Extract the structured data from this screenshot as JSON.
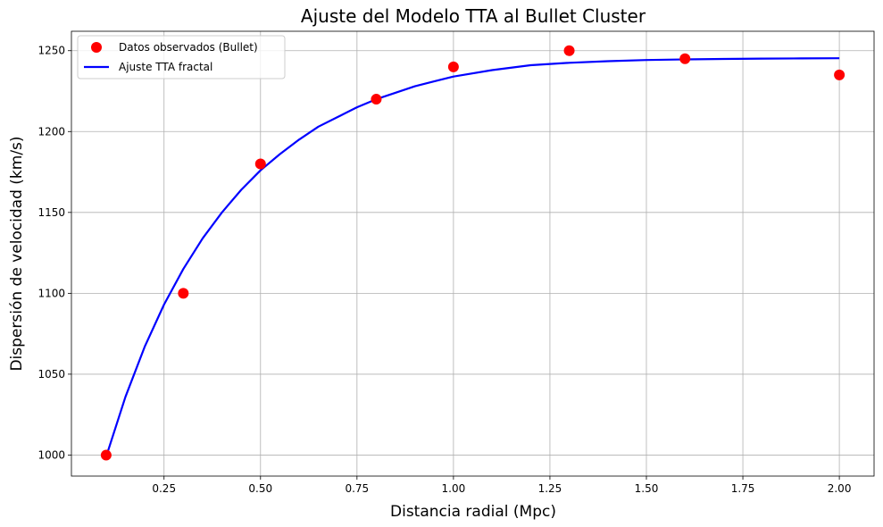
{
  "chart_data": {
    "type": "scatter",
    "title": "Ajuste del Modelo TTA al Bullet Cluster",
    "xlabel": "Distancia radial (Mpc)",
    "ylabel": "Dispersión de velocidad (km/s)",
    "xlim": [
      0.01,
      2.09
    ],
    "ylim": [
      987,
      1262
    ],
    "xticks": [
      0.25,
      0.5,
      0.75,
      1.0,
      1.25,
      1.5,
      1.75,
      2.0
    ],
    "xtick_labels": [
      "0.25",
      "0.50",
      "0.75",
      "1.00",
      "1.25",
      "1.50",
      "1.75",
      "2.00"
    ],
    "yticks": [
      1000,
      1050,
      1100,
      1150,
      1200,
      1250
    ],
    "ytick_labels": [
      "1000",
      "1050",
      "1100",
      "1150",
      "1200",
      "1250"
    ],
    "grid": true,
    "legend_position": "top-left",
    "series": [
      {
        "name": "Datos observados (Bullet)",
        "kind": "scatter",
        "color": "#ff0000",
        "x": [
          0.1,
          0.3,
          0.5,
          0.8,
          1.0,
          1.3,
          1.6,
          2.0
        ],
        "y": [
          1000,
          1100,
          1180,
          1220,
          1240,
          1250,
          1245,
          1235
        ]
      },
      {
        "name": "Ajuste TTA fractal",
        "kind": "line",
        "color": "#0000ff",
        "x": [
          0.1,
          0.15,
          0.2,
          0.25,
          0.3,
          0.35,
          0.4,
          0.45,
          0.5,
          0.55,
          0.6,
          0.65,
          0.7,
          0.75,
          0.8,
          0.85,
          0.9,
          0.95,
          1.0,
          1.1,
          1.2,
          1.3,
          1.4,
          1.5,
          1.6,
          1.7,
          1.8,
          1.9,
          2.0
        ],
        "y": [
          999,
          1036,
          1067,
          1093,
          1115,
          1134,
          1150,
          1164,
          1176,
          1186,
          1195,
          1203,
          1209,
          1215,
          1220,
          1224,
          1228,
          1231,
          1234,
          1238,
          1241,
          1242.5,
          1243.5,
          1244.2,
          1244.6,
          1244.9,
          1245.1,
          1245.2,
          1245.3
        ]
      }
    ]
  }
}
